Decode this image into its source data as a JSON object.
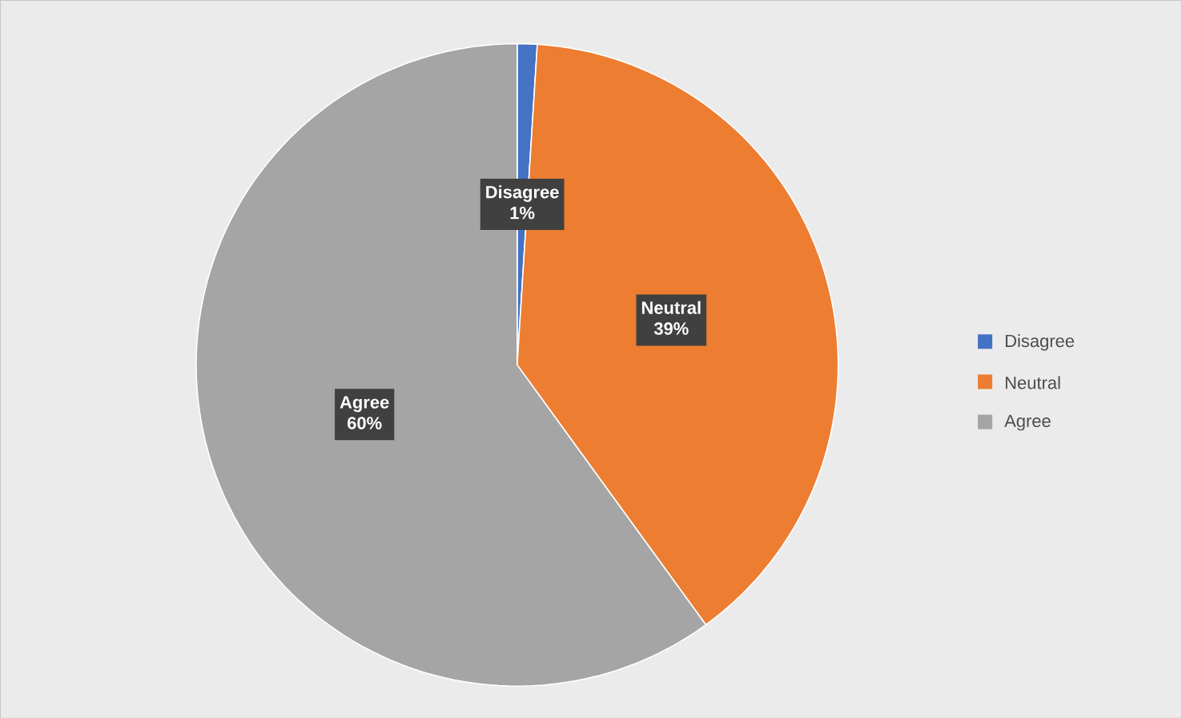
{
  "chart_data": {
    "type": "pie",
    "categories": [
      "Disagree",
      "Neutral",
      "Agree"
    ],
    "values": [
      1,
      39,
      60
    ],
    "colors": [
      "#4472c4",
      "#ed7d31",
      "#a5a5a5"
    ],
    "value_labels": [
      "1%",
      "39%",
      "60%"
    ],
    "legend": "right"
  }
}
